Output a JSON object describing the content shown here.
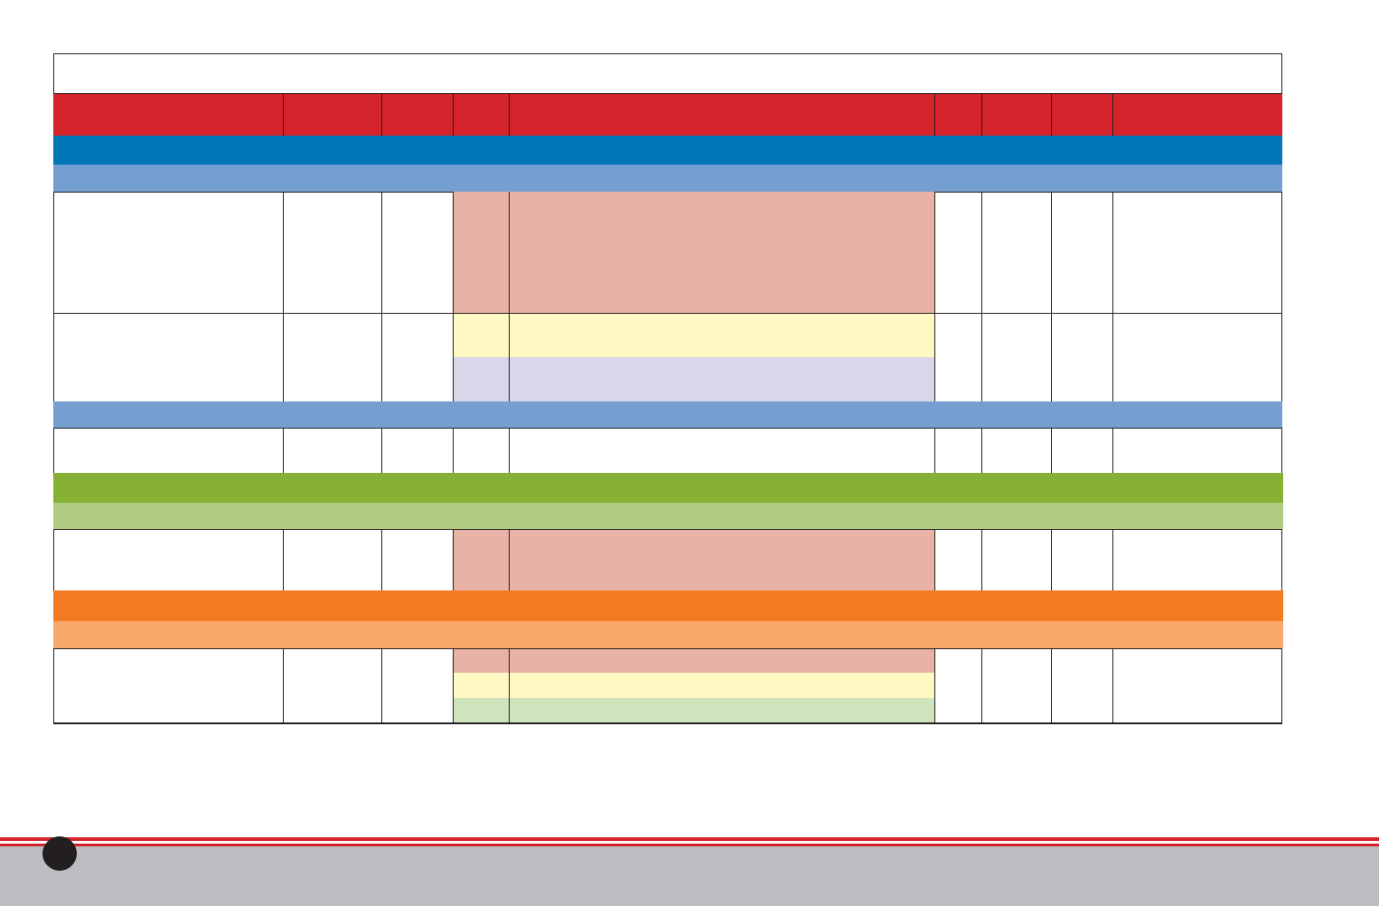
{
  "colors": {
    "header_red": "#d4232b",
    "section_blue": "#0075b8",
    "subsection_blue": "#769fd1",
    "section_green": "#87b134",
    "subsection_green": "#b1cc80",
    "section_orange": "#f37c22",
    "subsection_orange": "#f8a96b",
    "rating_red": "#e9b2a7",
    "rating_yellow": "#fef8c2",
    "rating_purple": "#dbd5e9",
    "rating_green": "#cfe3bd",
    "footer_gray": "#bcbdc0"
  },
  "table": {
    "title": "",
    "header_columns": [
      "",
      "",
      "",
      "",
      "",
      "",
      "",
      "",
      ""
    ]
  },
  "footer": {
    "page_number": ""
  }
}
